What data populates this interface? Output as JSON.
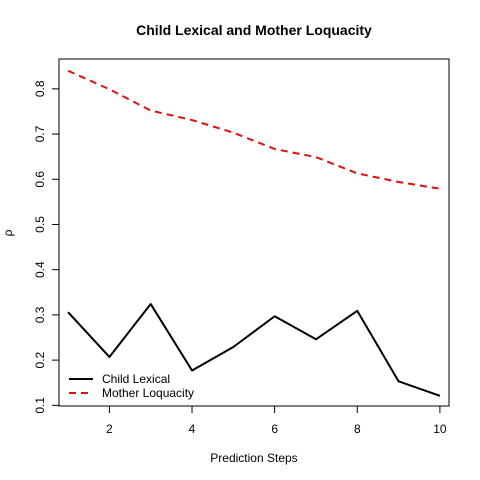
{
  "chart_data": {
    "type": "line",
    "title": "Child Lexical and Mother Loquacity",
    "xlabel": "Prediction Steps",
    "ylabel": "ρ",
    "x": [
      1,
      2,
      3,
      4,
      5,
      6,
      7,
      8,
      9,
      10
    ],
    "xlim": [
      0.78,
      10.22
    ],
    "ylim": [
      0.0985,
      0.866
    ],
    "x_ticks": [
      2,
      4,
      6,
      8,
      10
    ],
    "y_ticks": [
      0.1,
      0.2,
      0.3,
      0.4,
      0.5,
      0.6,
      0.7,
      0.8
    ],
    "x_tick_labels": [
      "2",
      "4",
      "6",
      "8",
      "10"
    ],
    "y_tick_labels": [
      "0.1",
      "0.2",
      "0.3",
      "0.4",
      "0.5",
      "0.6",
      "0.7",
      "0.8"
    ],
    "grid": false,
    "legend_position": "bottom-left",
    "series": [
      {
        "name": "Child Lexical",
        "color": "#000000",
        "dash": "solid",
        "values": [
          0.306,
          0.207,
          0.324,
          0.177,
          0.229,
          0.297,
          0.246,
          0.309,
          0.153,
          0.121
        ]
      },
      {
        "name": "Mother Loquacity",
        "color": "#df1010",
        "dash": "dashed",
        "values": [
          0.84,
          0.799,
          0.752,
          0.731,
          0.703,
          0.667,
          0.649,
          0.613,
          0.594,
          0.579
        ]
      }
    ]
  }
}
